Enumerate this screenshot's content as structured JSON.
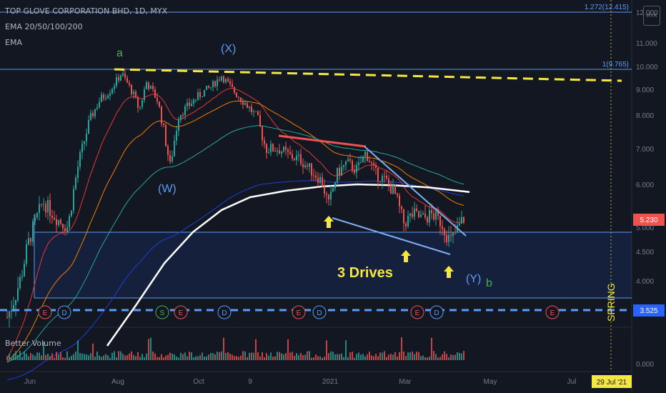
{
  "legend": {
    "symbol": "TOP GLOVE CORPORATION BHD, 1D, MYX",
    "indicator_1": "EMA 20/50/100/200",
    "indicator_2": "EMA"
  },
  "volume_label": "Better Volume",
  "scale_button": "MYR",
  "chart_data": {
    "type": "candlestick",
    "y_ticks": [
      "12.000",
      "11.000",
      "10.000",
      "9.000",
      "8.000",
      "7.000",
      "6.000",
      "5.000",
      "4.500",
      "4.000"
    ],
    "y_tick_values": [
      12,
      11,
      10,
      9,
      8,
      7,
      6,
      5,
      4.5,
      4
    ],
    "x_ticks": [
      "Jun",
      "Aug",
      "Oct",
      "9",
      "2021",
      "Mar",
      "May",
      "Jul"
    ],
    "price_last": "5.230",
    "support_level": "3.525",
    "volume_scale_label": "0.000",
    "date_marker": "29 Jul '21",
    "fib_levels": [
      {
        "label": "1.272(12.415)",
        "value": 12.415
      },
      {
        "label": "1(9.765)",
        "value": 9.765
      }
    ],
    "annotations": {
      "a": "a",
      "X": "(X)",
      "W": "(W)",
      "Y": "(Y)",
      "b": "b",
      "three_drives": "3 Drives",
      "spring": "SPRING"
    },
    "events": [
      "E",
      "D",
      "S",
      "E",
      "D",
      "E",
      "D",
      "E",
      "D",
      "E"
    ],
    "colors": {
      "up": "#26a69a",
      "down": "#ef5350",
      "fib": "#5b9cf6",
      "dash_yellow": "#f5e642",
      "arrow": "#f5e642"
    }
  }
}
